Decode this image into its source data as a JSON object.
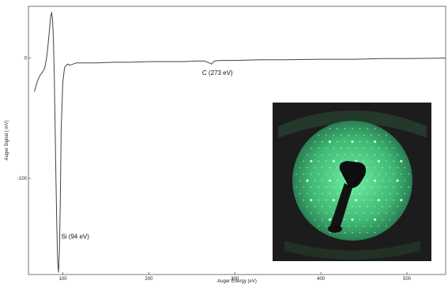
{
  "chart_data": {
    "type": "line",
    "title": "",
    "xlabel": "Auger Energy (eV)",
    "ylabel": "Auger Signal ( mV)",
    "xlim": [
      60,
      545
    ],
    "ylim": [
      -180,
      43
    ],
    "x_ticks": [
      100,
      200,
      300,
      400,
      500
    ],
    "y_ticks": [
      0,
      -100
    ],
    "grid": false,
    "legend": "none",
    "series": [
      {
        "line_color": "#444444",
        "x": [
          67,
          70,
          73,
          75,
          77,
          79,
          81,
          83,
          85,
          86,
          87,
          88,
          89,
          90,
          91,
          92,
          93,
          94,
          95,
          96,
          97,
          98,
          100,
          102,
          104,
          106,
          108,
          112,
          116,
          125,
          140,
          160,
          180,
          200,
          220,
          240,
          255,
          265,
          270,
          273,
          276,
          282,
          300,
          330,
          360,
          400,
          440,
          470,
          500,
          545
        ],
        "y": [
          -28,
          -20,
          -15,
          -13,
          -11,
          -8,
          0,
          12,
          28,
          35,
          38,
          32,
          15,
          -15,
          -55,
          -100,
          -140,
          -170,
          -178,
          -160,
          -120,
          -60,
          -20,
          -8,
          -6,
          -5,
          -6,
          -5,
          -4,
          -4,
          -4,
          -3.5,
          -3.5,
          -3,
          -3,
          -3,
          -2.5,
          -2.5,
          -4,
          -5,
          -2.5,
          -2,
          -2,
          -1.5,
          -1.5,
          -1,
          -1,
          -0.5,
          -0.5,
          0
        ]
      }
    ],
    "annotations": [
      {
        "text": "C (273 eV)",
        "x": 262,
        "y": -14
      },
      {
        "text": "Si (94 eV)",
        "x": 98,
        "y": -150
      }
    ]
  },
  "inset": {
    "name": "LEED pattern photo",
    "background": "#1c1c1c",
    "screen_color": "#4ed98a",
    "spot_color": "#d8ffe8"
  }
}
